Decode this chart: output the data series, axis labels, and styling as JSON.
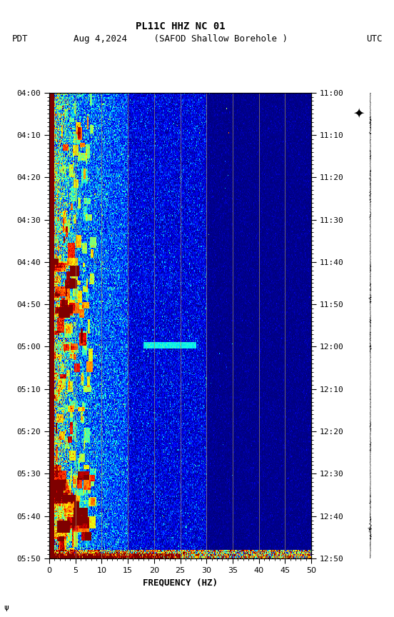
{
  "title_line1": "PL11C HHZ NC 01",
  "title_line2": "Aug 4,2024     (SAFOD Shallow Borehole )",
  "left_label": "PDT",
  "right_label": "UTC",
  "xlabel": "FREQUENCY (HZ)",
  "freq_min": 0,
  "freq_max": 50,
  "pdt_ticks": [
    "04:00",
    "04:10",
    "04:20",
    "04:30",
    "04:40",
    "04:50",
    "05:00",
    "05:10",
    "05:20",
    "05:30",
    "05:40",
    "05:50"
  ],
  "utc_ticks": [
    "11:00",
    "11:10",
    "11:20",
    "11:30",
    "11:40",
    "11:50",
    "12:00",
    "12:10",
    "12:20",
    "12:30",
    "12:40",
    "12:50"
  ],
  "xticks": [
    0,
    5,
    10,
    15,
    20,
    25,
    30,
    35,
    40,
    45,
    50
  ],
  "vertical_lines_freq": [
    5.0,
    10.0,
    15.0,
    20.0,
    25.0,
    30.0,
    35.0,
    40.0,
    45.0
  ],
  "background_color": "#ffffff"
}
